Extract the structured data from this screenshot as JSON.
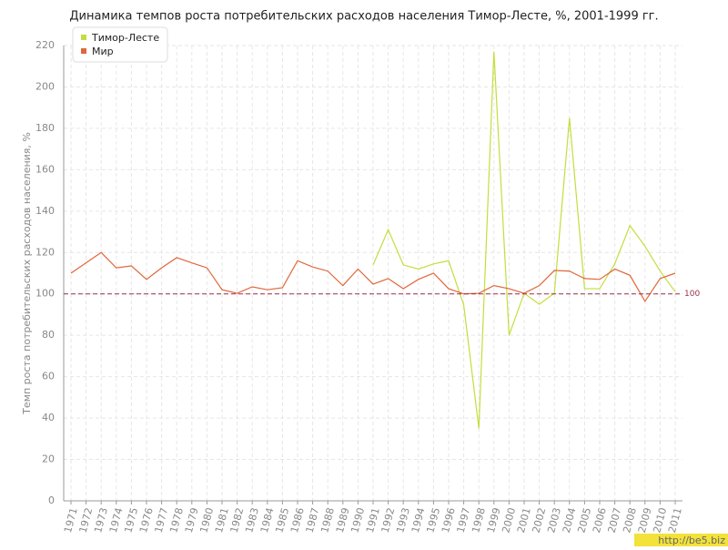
{
  "chart_data": {
    "type": "line",
    "title": "Динамика темпов роста потребительских расходов населения Тимор-Лесте, %, 2001-1999 гг.",
    "y_label": "Темп роста потребительских расходов населения, %",
    "categories": [
      "1971",
      "1972",
      "1973",
      "1974",
      "1975",
      "1976",
      "1977",
      "1978",
      "1979",
      "1980",
      "1981",
      "1982",
      "1983",
      "1984",
      "1985",
      "1986",
      "1987",
      "1988",
      "1989",
      "1990",
      "1991",
      "1992",
      "1993",
      "1994",
      "1995",
      "1996",
      "1997",
      "1998",
      "1999",
      "2000",
      "2001",
      "2002",
      "2003",
      "2004",
      "2005",
      "2006",
      "2007",
      "2008",
      "2009",
      "2010",
      "2011"
    ],
    "series": [
      {
        "name": "Тимор-Лесте",
        "color": "#c5dd3c",
        "values": [
          null,
          null,
          null,
          null,
          null,
          null,
          null,
          null,
          null,
          null,
          null,
          null,
          null,
          null,
          null,
          null,
          null,
          null,
          null,
          null,
          114,
          131,
          114,
          112,
          114.5,
          116,
          94.6,
          35,
          217,
          80,
          100.3,
          95,
          100.3,
          185,
          102.5,
          102.5,
          114.5,
          133,
          123,
          111,
          101
        ]
      },
      {
        "name": "Мир",
        "color": "#e0673a",
        "values": [
          110,
          115,
          120,
          112.6,
          113.5,
          107,
          112.6,
          117.5,
          115,
          112.6,
          102,
          100.3,
          103.4,
          102,
          103,
          116,
          113,
          111,
          104,
          112,
          104.7,
          107.4,
          102.5,
          107,
          110,
          102.5,
          100,
          100.3,
          104,
          102.5,
          100.3,
          104,
          111.3,
          111,
          107.4,
          107,
          112,
          109,
          96.4,
          107.4,
          110
        ]
      }
    ],
    "ylim": [
      0,
      220
    ],
    "yticks": [
      0,
      20,
      40,
      60,
      80,
      100,
      120,
      140,
      160,
      180,
      200,
      220
    ],
    "grid": true,
    "legend": "top-left",
    "reference_line": 100,
    "reference_color": "#a0304a",
    "watermark": "http://be5.biz"
  }
}
